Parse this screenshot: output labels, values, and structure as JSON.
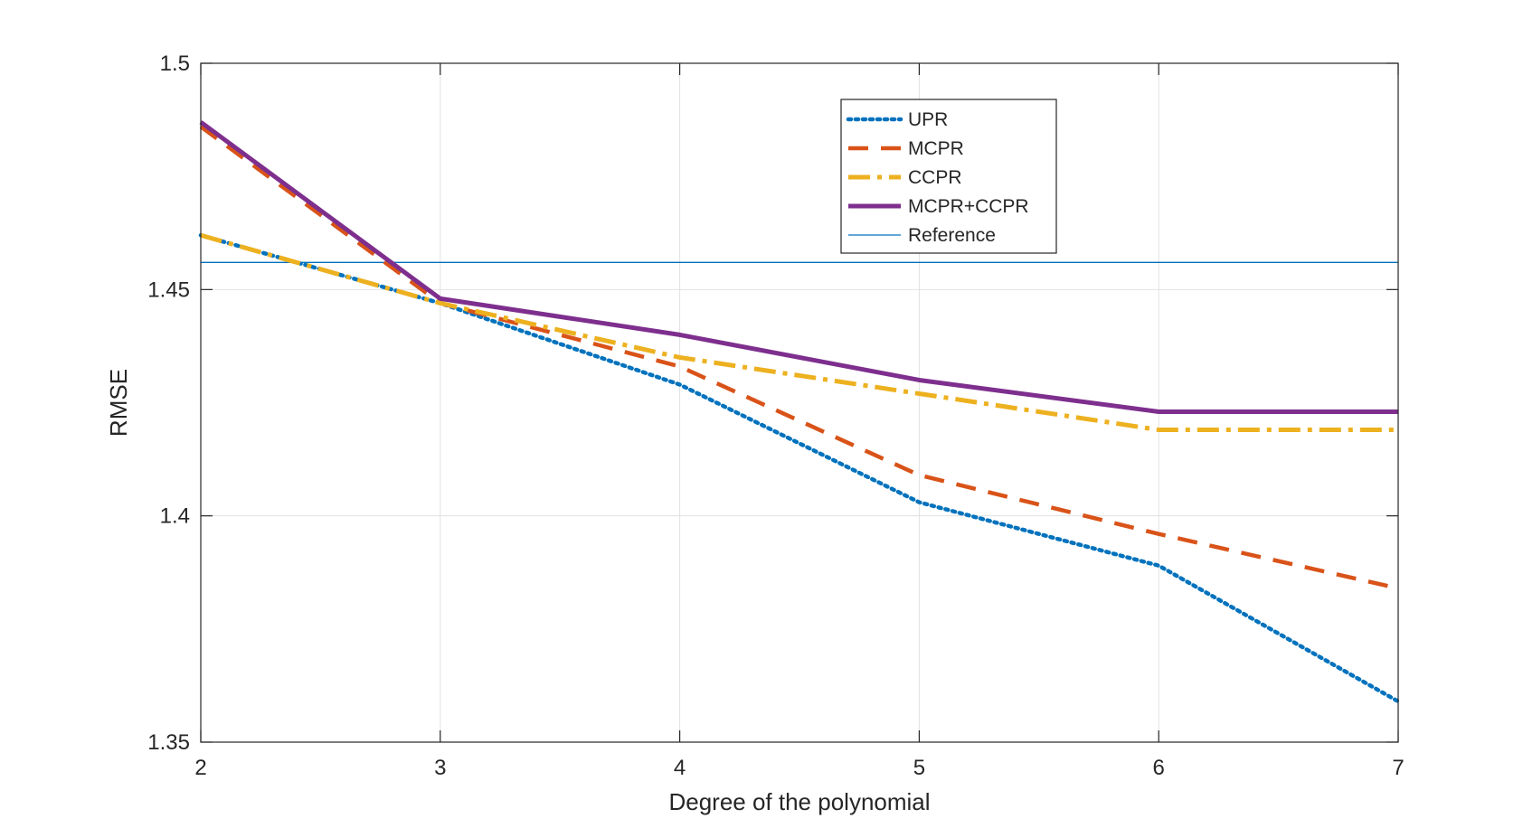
{
  "chart_data": {
    "type": "line",
    "title": "",
    "xlabel": "Degree of the polynomial",
    "ylabel": "RMSE",
    "xlim": [
      2,
      7
    ],
    "ylim": [
      1.35,
      1.5
    ],
    "grid": true,
    "legend_position": "top-right",
    "x": [
      2,
      3,
      4,
      5,
      6,
      7
    ],
    "x_ticks": [
      "2",
      "3",
      "4",
      "5",
      "6",
      "7"
    ],
    "y_tick_values": [
      1.35,
      1.4,
      1.45,
      1.5
    ],
    "y_ticks": [
      "1.35",
      "1.4",
      "1.45",
      "1.5"
    ],
    "series": [
      {
        "name": "UPR",
        "color": "#0072BD",
        "style": "dotted",
        "values": [
          1.462,
          1.447,
          1.429,
          1.403,
          1.389,
          1.359
        ]
      },
      {
        "name": "MCPR",
        "color": "#D95319",
        "style": "dashed",
        "values": [
          1.486,
          1.447,
          1.433,
          1.409,
          1.396,
          1.384
        ]
      },
      {
        "name": "CCPR",
        "color": "#EDB120",
        "style": "dashdot",
        "values": [
          1.462,
          1.447,
          1.435,
          1.427,
          1.419,
          1.419
        ]
      },
      {
        "name": "MCPR+CCPR",
        "color": "#7E2F8E",
        "style": "solid",
        "values": [
          1.487,
          1.448,
          1.44,
          1.43,
          1.423,
          1.423
        ]
      }
    ],
    "reference": {
      "name": "Reference",
      "color": "#0072BD",
      "value": 1.456
    }
  }
}
